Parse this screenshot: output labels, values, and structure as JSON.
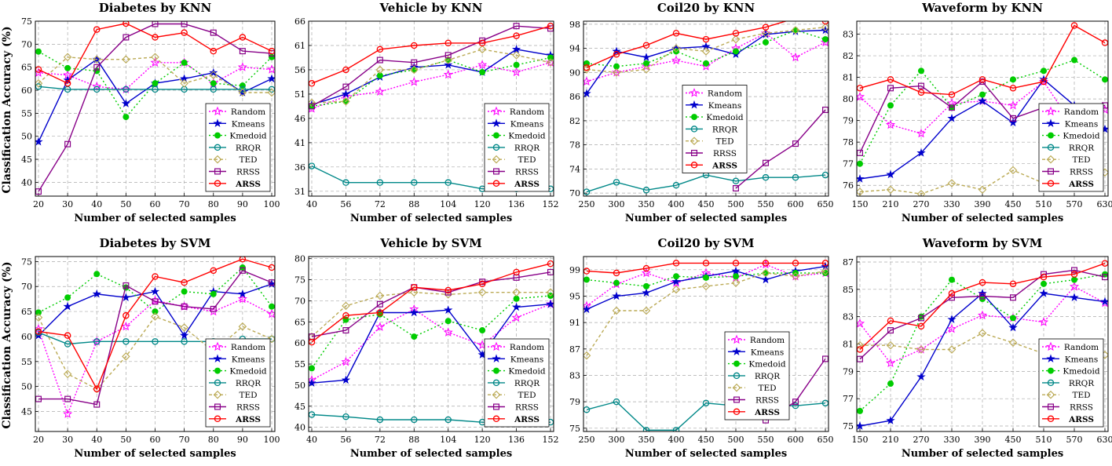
{
  "ylabel": "Classification Accuracy (%)",
  "legend_labels": [
    "Random",
    "Kmeans",
    "Kmedoid",
    "RRQR",
    "TED",
    "RRSS",
    "ARSS"
  ],
  "series_style": [
    {
      "color": "#ff00ff",
      "dash": "2,2",
      "marker": "star-open"
    },
    {
      "color": "#0000cc",
      "dash": "",
      "marker": "star"
    },
    {
      "color": "#00cc00",
      "dash": "2,3",
      "marker": "dot"
    },
    {
      "color": "#008888",
      "dash": "",
      "marker": "circle-open"
    },
    {
      "color": "#bbaa55",
      "dash": "4,3",
      "marker": "diamond-open"
    },
    {
      "color": "#880088",
      "dash": "",
      "marker": "square-open"
    },
    {
      "color": "#ff0000",
      "dash": "",
      "marker": "circle-open"
    }
  ],
  "chart_data": [
    {
      "type": "line",
      "title": "Diabetes by KNN",
      "xlabel": "Number of selected samples",
      "x": [
        20,
        30,
        40,
        50,
        60,
        70,
        80,
        90,
        100
      ],
      "xticks": [
        "20",
        "30",
        "40",
        "50",
        "60",
        "70",
        "80",
        "90",
        "100"
      ],
      "ylim": [
        37,
        75
      ],
      "yticks": [
        40,
        45,
        50,
        55,
        60,
        65,
        70,
        75
      ],
      "legend_pos": "bottom-right",
      "series": [
        {
          "name": "Random",
          "values": [
            63.8,
            63.3,
            60.8,
            60.2,
            66.0,
            66.0,
            61.5,
            65.0,
            64.5
          ]
        },
        {
          "name": "Kmeans",
          "values": [
            48.8,
            62.2,
            66.7,
            57.1,
            61.5,
            62.5,
            63.8,
            59.5,
            62.5
          ]
        },
        {
          "name": "Kmedoid",
          "values": [
            68.4,
            64.8,
            64.2,
            54.2,
            61.5,
            66.0,
            61.5,
            61.0,
            67.2
          ]
        },
        {
          "name": "RRQR",
          "values": [
            60.8,
            60.2,
            60.2,
            60.2,
            60.2,
            60.2,
            60.2,
            60.2,
            60.2
          ]
        },
        {
          "name": "TED",
          "values": [
            61.5,
            67.2,
            66.7,
            66.7,
            67.2,
            61.5,
            63.3,
            59.5,
            59.5
          ]
        },
        {
          "name": "RRSS",
          "values": [
            38.0,
            48.3,
            65.0,
            71.5,
            74.4,
            74.4,
            72.5,
            68.5,
            68.0
          ]
        },
        {
          "name": "ARSS",
          "values": [
            64.5,
            61.5,
            73.2,
            74.5,
            71.5,
            72.5,
            68.5,
            71.5,
            68.5
          ]
        }
      ]
    },
    {
      "type": "line",
      "title": "Vehicle by KNN",
      "xlabel": "Number of selected samples",
      "x": [
        40,
        56,
        72,
        88,
        104,
        120,
        136,
        152
      ],
      "xticks": [
        "40",
        "56",
        "72",
        "88",
        "104",
        "120",
        "136",
        "152"
      ],
      "ylim": [
        30,
        66
      ],
      "yticks": [
        31,
        36,
        41,
        46,
        51,
        56,
        61,
        66
      ],
      "legend_pos": "bottom-right",
      "series": [
        {
          "name": "Random",
          "values": [
            48.0,
            50.5,
            51.5,
            53.5,
            55.0,
            57.0,
            55.5,
            57.5
          ]
        },
        {
          "name": "Kmeans",
          "values": [
            48.8,
            51.0,
            54.5,
            56.5,
            57.0,
            55.5,
            60.2,
            59.0
          ]
        },
        {
          "name": "Kmedoid",
          "values": [
            48.5,
            49.5,
            54.8,
            56.0,
            58.0,
            55.5,
            57.0,
            58.5
          ]
        },
        {
          "name": "RRQR",
          "values": [
            36.2,
            32.8,
            32.8,
            32.8,
            32.8,
            31.5,
            31.5,
            31.5
          ]
        },
        {
          "name": "TED",
          "values": [
            49.2,
            49.5,
            56.0,
            56.0,
            58.0,
            60.2,
            59.0,
            57.5
          ]
        },
        {
          "name": "RRSS",
          "values": [
            48.5,
            52.5,
            58.0,
            57.5,
            59.0,
            62.0,
            65.0,
            64.5
          ]
        },
        {
          "name": "ARSS",
          "values": [
            53.2,
            56.0,
            60.2,
            61.0,
            61.5,
            61.5,
            63.0,
            65.0
          ]
        }
      ]
    },
    {
      "type": "line",
      "title": "Coil20 by KNN",
      "xlabel": "Number of selected samples",
      "x": [
        250,
        300,
        350,
        400,
        450,
        500,
        550,
        600,
        650
      ],
      "xticks": [
        "250",
        "300",
        "350",
        "400",
        "450",
        "500",
        "550",
        "600",
        "650"
      ],
      "ylim": [
        69.5,
        98.5
      ],
      "yticks": [
        70,
        74,
        78,
        82,
        86,
        90,
        94,
        98
      ],
      "legend_pos": "center",
      "series": [
        {
          "name": "Random",
          "values": [
            88.5,
            90.0,
            91.0,
            92.0,
            91.0,
            94.0,
            96.5,
            92.5,
            95.0
          ]
        },
        {
          "name": "Kmeans",
          "values": [
            86.5,
            93.5,
            92.5,
            94.0,
            94.3,
            93.0,
            96.3,
            96.8,
            97.0
          ]
        },
        {
          "name": "Kmedoid",
          "values": [
            91.5,
            91.0,
            91.5,
            93.5,
            91.5,
            93.5,
            95.0,
            97.0,
            95.5
          ]
        },
        {
          "name": "RRQR",
          "values": [
            70.2,
            71.8,
            70.5,
            71.3,
            73.0,
            72.0,
            72.6,
            72.6,
            73.0
          ]
        },
        {
          "name": "TED",
          "values": [
            90.5,
            90.0,
            90.5,
            94.0,
            93.5,
            95.5,
            96.5,
            97.0,
            97.5
          ]
        },
        {
          "name": "RRSS",
          "values": [
            null,
            null,
            null,
            null,
            null,
            70.8,
            75.0,
            78.2,
            83.8
          ]
        },
        {
          "name": "ARSS",
          "values": [
            90.8,
            93.0,
            94.5,
            96.5,
            95.5,
            96.5,
            97.5,
            99.0,
            98.5
          ]
        }
      ]
    },
    {
      "type": "line",
      "title": "Waveform by KNN",
      "xlabel": "Number of selected samples",
      "x": [
        150,
        210,
        270,
        330,
        390,
        450,
        510,
        570,
        630
      ],
      "xticks": [
        "150",
        "210",
        "270",
        "330",
        "390",
        "450",
        "510",
        "570",
        "630"
      ],
      "ylim": [
        75.5,
        83.6
      ],
      "yticks": [
        76,
        77,
        78,
        79,
        80,
        81,
        82,
        83
      ],
      "legend_pos": "bottom-right",
      "series": [
        {
          "name": "Random",
          "values": [
            80.1,
            78.8,
            78.4,
            79.8,
            79.9,
            79.7,
            80.8,
            78.7,
            79.5
          ]
        },
        {
          "name": "Kmeans",
          "values": [
            76.3,
            76.5,
            77.5,
            79.1,
            79.9,
            78.9,
            80.9,
            79.7,
            78.6
          ]
        },
        {
          "name": "Kmedoid",
          "values": [
            77.0,
            79.7,
            81.3,
            79.6,
            80.2,
            80.9,
            81.3,
            81.8,
            80.9
          ]
        },
        {
          "name": "RRQR",
          "values": [
            null,
            null,
            null,
            null,
            null,
            null,
            null,
            null,
            null
          ]
        },
        {
          "name": "TED",
          "values": [
            75.7,
            75.8,
            75.6,
            76.1,
            75.8,
            76.7,
            76.1,
            76.0,
            76.6
          ]
        },
        {
          "name": "RRSS",
          "values": [
            77.5,
            80.5,
            80.6,
            79.6,
            80.8,
            79.1,
            79.6,
            79.3,
            79.7
          ]
        },
        {
          "name": "ARSS",
          "values": [
            80.5,
            80.9,
            80.3,
            80.2,
            80.9,
            80.5,
            80.8,
            83.4,
            82.6
          ]
        }
      ]
    },
    {
      "type": "line",
      "title": "Diabetes by SVM",
      "xlabel": "Number of selected samples",
      "x": [
        20,
        30,
        40,
        50,
        60,
        70,
        80,
        90,
        100
      ],
      "xticks": [
        "20",
        "30",
        "40",
        "50",
        "60",
        "70",
        "80",
        "90",
        "100"
      ],
      "ylim": [
        41,
        76
      ],
      "yticks": [
        45,
        50,
        55,
        60,
        65,
        70,
        75
      ],
      "legend_pos": "bottom-right",
      "series": [
        {
          "name": "Random",
          "values": [
            61.5,
            44.5,
            59.0,
            62.0,
            67.2,
            66.0,
            65.0,
            67.5,
            64.5
          ]
        },
        {
          "name": "Kmeans",
          "values": [
            60.2,
            66.0,
            68.5,
            67.8,
            69.0,
            60.2,
            69.0,
            68.5,
            70.5
          ]
        },
        {
          "name": "Kmedoid",
          "values": [
            64.8,
            67.8,
            72.5,
            69.8,
            65.0,
            69.0,
            68.5,
            73.8,
            66.0
          ]
        },
        {
          "name": "RRQR",
          "values": [
            60.8,
            58.5,
            59.0,
            59.0,
            59.0,
            59.0,
            59.0,
            59.5,
            59.5
          ]
        },
        {
          "name": "TED",
          "values": [
            63.8,
            52.5,
            49.5,
            56.0,
            64.0,
            61.8,
            57.0,
            62.0,
            59.5
          ]
        },
        {
          "name": "RRSS",
          "values": [
            47.5,
            47.5,
            46.4,
            70.2,
            67.0,
            66.0,
            65.5,
            73.2,
            70.8
          ]
        },
        {
          "name": "ARSS",
          "values": [
            61.0,
            60.2,
            49.5,
            64.2,
            72.0,
            70.8,
            73.2,
            75.5,
            73.8
          ]
        }
      ]
    },
    {
      "type": "line",
      "title": "Vehicle by SVM",
      "xlabel": "Number of selected samples",
      "x": [
        40,
        56,
        72,
        88,
        104,
        120,
        136,
        152
      ],
      "xticks": [
        "40",
        "56",
        "72",
        "88",
        "104",
        "120",
        "136",
        "152"
      ],
      "ylim": [
        39,
        80.5
      ],
      "yticks": [
        40,
        45,
        50,
        55,
        60,
        65,
        70,
        75,
        80
      ],
      "legend_pos": "bottom-right",
      "series": [
        {
          "name": "Random",
          "values": [
            51.2,
            55.5,
            63.8,
            68.0,
            62.5,
            59.5,
            66.0,
            69.2
          ]
        },
        {
          "name": "Kmeans",
          "values": [
            50.5,
            51.2,
            67.2,
            67.2,
            67.8,
            57.2,
            68.5,
            69.2
          ]
        },
        {
          "name": "Kmedoid",
          "values": [
            54.0,
            65.5,
            66.8,
            61.5,
            65.2,
            63.0,
            70.5,
            71.2
          ]
        },
        {
          "name": "RRQR",
          "values": [
            43.0,
            42.5,
            41.8,
            41.8,
            41.8,
            41.2,
            41.2,
            41.2
          ]
        },
        {
          "name": "TED",
          "values": [
            61.5,
            68.8,
            71.2,
            72.0,
            71.5,
            72.0,
            72.0,
            72.0
          ]
        },
        {
          "name": "RRSS",
          "values": [
            61.5,
            63.0,
            69.2,
            73.2,
            72.0,
            74.5,
            75.5,
            76.8
          ]
        },
        {
          "name": "ARSS",
          "values": [
            60.2,
            66.5,
            67.2,
            73.2,
            72.5,
            74.0,
            76.8,
            78.8
          ]
        }
      ]
    },
    {
      "type": "line",
      "title": "Coil20 by SVM",
      "xlabel": "Number of selected samples",
      "x": [
        250,
        300,
        350,
        400,
        450,
        500,
        550,
        600,
        650
      ],
      "xticks": [
        "250",
        "300",
        "350",
        "400",
        "450",
        "500",
        "550",
        "600",
        "650"
      ],
      "ylim": [
        74.5,
        101
      ],
      "yticks": [
        75,
        79,
        83,
        87,
        91,
        95,
        99
      ],
      "legend_pos": "center-right",
      "series": [
        {
          "name": "Random",
          "values": [
            93.5,
            96.8,
            98.5,
            97.0,
            98.5,
            97.8,
            99.8,
            98.0,
            98.5
          ]
        },
        {
          "name": "Kmeans",
          "values": [
            93.0,
            95.0,
            95.5,
            97.2,
            98.0,
            98.8,
            97.5,
            98.8,
            99.5
          ]
        },
        {
          "name": "Kmedoid",
          "values": [
            97.5,
            97.0,
            96.5,
            98.0,
            97.8,
            98.0,
            98.5,
            98.5,
            98.5
          ]
        },
        {
          "name": "RRQR",
          "values": [
            77.8,
            79.0,
            74.7,
            74.7,
            78.8,
            78.4,
            78.4,
            78.4,
            78.8
          ]
        },
        {
          "name": "TED",
          "values": [
            86.0,
            92.8,
            92.8,
            96.0,
            96.5,
            97.0,
            98.5,
            98.0,
            98.8
          ]
        },
        {
          "name": "RRSS",
          "values": [
            null,
            null,
            null,
            null,
            null,
            null,
            76.2,
            79.0,
            85.5
          ]
        },
        {
          "name": "ARSS",
          "values": [
            98.8,
            98.5,
            99.2,
            100.0,
            100.0,
            100.0,
            100.0,
            100.0,
            100.0
          ]
        }
      ]
    },
    {
      "type": "line",
      "title": "Waveform by SVM",
      "xlabel": "Number of selected samples",
      "x": [
        150,
        210,
        270,
        330,
        390,
        450,
        510,
        570,
        630
      ],
      "xticks": [
        "150",
        "210",
        "270",
        "330",
        "390",
        "450",
        "510",
        "570",
        "630"
      ],
      "ylim": [
        74.6,
        87.4
      ],
      "yticks": [
        75,
        77,
        79,
        81,
        83,
        85,
        87
      ],
      "legend_pos": "bottom-right",
      "series": [
        {
          "name": "Random",
          "values": [
            82.5,
            79.6,
            80.6,
            82.1,
            83.1,
            82.9,
            82.6,
            85.2,
            84.0
          ]
        },
        {
          "name": "Kmeans",
          "values": [
            75.0,
            75.4,
            78.6,
            82.8,
            84.7,
            82.2,
            84.7,
            84.4,
            84.1
          ]
        },
        {
          "name": "Kmedoid",
          "values": [
            76.1,
            78.1,
            83.0,
            85.7,
            84.3,
            82.9,
            85.4,
            85.7,
            86.1
          ]
        },
        {
          "name": "RRQR",
          "values": [
            null,
            null,
            null,
            null,
            null,
            null,
            null,
            null,
            null
          ]
        },
        {
          "name": "TED",
          "values": [
            80.9,
            80.9,
            80.6,
            80.6,
            81.8,
            81.1,
            80.3,
            80.2,
            80.2
          ]
        },
        {
          "name": "RRSS",
          "values": [
            79.9,
            82.0,
            82.9,
            84.4,
            84.5,
            84.4,
            86.1,
            86.4,
            85.9
          ]
        },
        {
          "name": "ARSS",
          "values": [
            80.6,
            82.7,
            82.3,
            84.7,
            85.5,
            85.4,
            85.9,
            86.1,
            86.9
          ]
        }
      ]
    }
  ]
}
